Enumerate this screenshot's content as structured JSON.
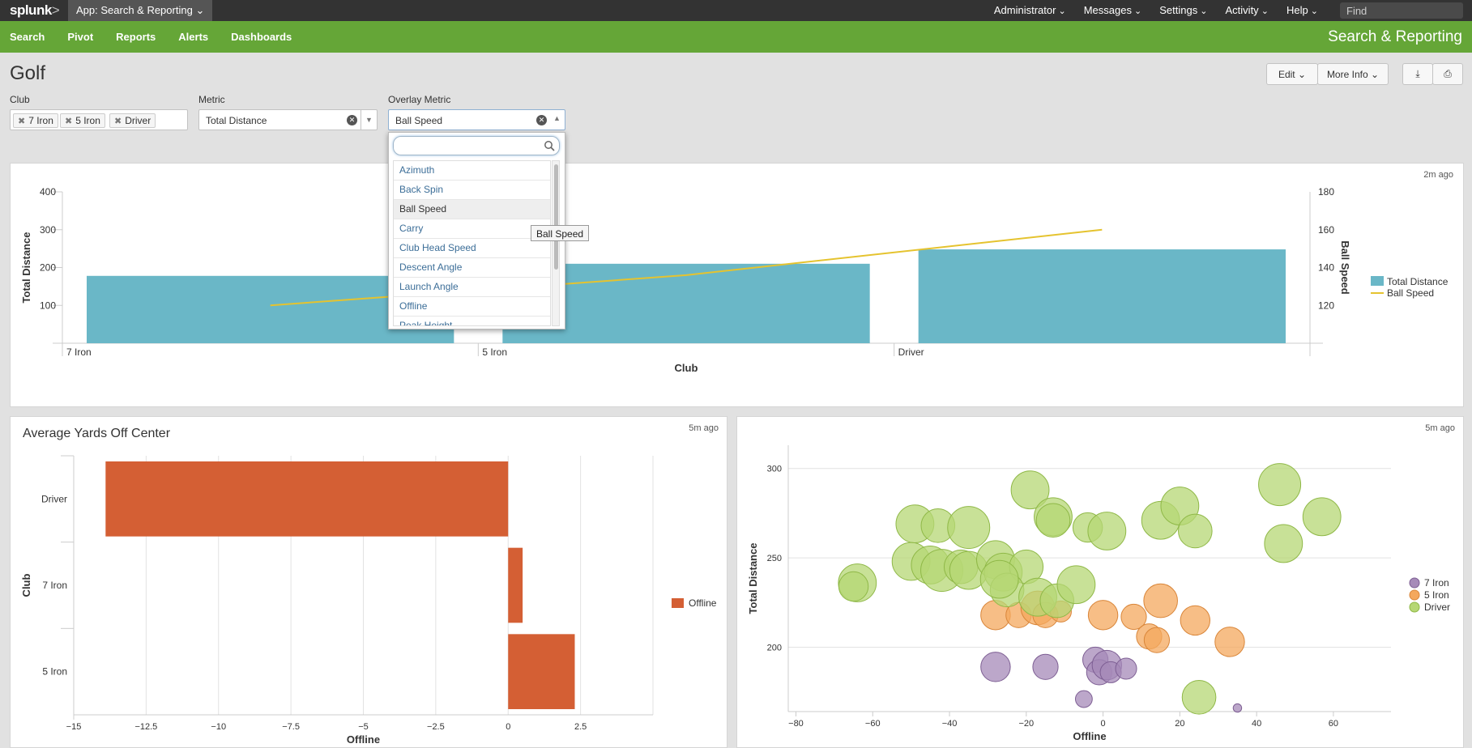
{
  "topbar": {
    "logo": "splunk",
    "logo_suffix": ">",
    "app_menu": "App: Search & Reporting",
    "nav": [
      "Administrator",
      "Messages",
      "Settings",
      "Activity",
      "Help"
    ],
    "find_placeholder": "Find"
  },
  "appnav": {
    "items": [
      "Search",
      "Pivot",
      "Reports",
      "Alerts",
      "Dashboards"
    ],
    "app_title": "Search & Reporting"
  },
  "dashboard": {
    "title": "Golf",
    "edit_label": "Edit",
    "more_info_label": "More Info"
  },
  "inputs": {
    "club": {
      "label": "Club",
      "tokens": [
        "7 Iron",
        "5 Iron",
        "Driver"
      ]
    },
    "metric": {
      "label": "Metric",
      "value": "Total Distance"
    },
    "overlay": {
      "label": "Overlay Metric",
      "value": "Ball Speed"
    }
  },
  "dropdown": {
    "options": [
      "Azimuth",
      "Back Spin",
      "Ball Speed",
      "Carry",
      "Club Head Speed",
      "Descent Angle",
      "Launch Angle",
      "Offline",
      "Peak Height"
    ],
    "selected": "Ball Speed",
    "tooltip": "Ball Speed"
  },
  "colors": {
    "green": "#65a637",
    "bar_blue": "#6ab7c7",
    "line_yellow": "#e5c32f",
    "bar_orange": "#d45f34",
    "seven_iron": "#a68ab8",
    "five_iron": "#f4a85e",
    "driver": "#b6d774"
  },
  "panels": {
    "top": {
      "ago": "2m ago"
    },
    "bottom_left": {
      "title": "Average Yards Off Center",
      "ago": "5m ago"
    },
    "bottom_right": {
      "ago": "5m ago"
    }
  },
  "chart_data": [
    {
      "type": "bar",
      "categories": [
        "7 Iron",
        "5 Iron",
        "Driver"
      ],
      "series": [
        {
          "name": "Total Distance",
          "type": "bar",
          "axis": "left",
          "values": [
            178,
            210,
            248
          ]
        },
        {
          "name": "Ball Speed",
          "type": "line",
          "axis": "right",
          "values": [
            120,
            136,
            160
          ]
        }
      ],
      "xlabel": "Club",
      "ylabel": "Total Distance",
      "y2label": "Ball Speed",
      "ylim": [
        0,
        400
      ],
      "y2lim": [
        100,
        180
      ],
      "yticks": [
        100,
        200,
        300,
        400
      ],
      "y2ticks": [
        120,
        140,
        160,
        180
      ],
      "legend": "right"
    },
    {
      "type": "bar",
      "orientation": "horizontal",
      "title": "Average Yards Off Center",
      "categories": [
        "Driver",
        "7 Iron",
        "5 Iron"
      ],
      "series": [
        {
          "name": "Offline",
          "values": [
            -13.9,
            0.5,
            2.3
          ]
        }
      ],
      "xlabel": "Offline",
      "ylabel": "Club",
      "xlim": [
        -15,
        5
      ],
      "xticks": [
        -15,
        -12.5,
        -10,
        -7.5,
        -5,
        -2.5,
        0,
        2.5
      ],
      "legend": "right"
    },
    {
      "type": "scatter",
      "xlabel": "Offline",
      "ylabel": "Total Distance",
      "xlim": [
        -82,
        75
      ],
      "ylim": [
        164,
        313
      ],
      "xticks": [
        -80,
        -60,
        -40,
        -20,
        0,
        20,
        40,
        60
      ],
      "yticks": [
        200,
        250,
        300
      ],
      "legend": "right",
      "series": [
        {
          "name": "7 Iron",
          "points": [
            [
              -28,
              189,
              7
            ],
            [
              -15,
              189,
              6
            ],
            [
              -2,
              193,
              6
            ],
            [
              -1,
              186,
              6
            ],
            [
              1,
              190,
              7
            ],
            [
              2,
              186,
              5
            ],
            [
              6,
              188,
              5
            ],
            [
              -5,
              171,
              4
            ],
            [
              35,
              166,
              2
            ]
          ]
        },
        {
          "name": "5 Iron",
          "points": [
            [
              -28,
              218,
              7
            ],
            [
              -22,
              218,
              6
            ],
            [
              -17,
              222,
              8
            ],
            [
              -15,
              218,
              6
            ],
            [
              -11,
              220,
              5
            ],
            [
              0,
              218,
              7
            ],
            [
              8,
              217,
              6
            ],
            [
              15,
              226,
              8
            ],
            [
              12,
              206,
              6
            ],
            [
              14,
              204,
              6
            ],
            [
              24,
              215,
              7
            ],
            [
              33,
              203,
              7
            ]
          ]
        },
        {
          "name": "Driver",
          "points": [
            [
              -64,
              236,
              9
            ],
            [
              -65,
              234,
              7
            ],
            [
              -49,
              269,
              9
            ],
            [
              -43,
              268,
              8
            ],
            [
              -35,
              267,
              10
            ],
            [
              -19,
              288,
              9
            ],
            [
              -13,
              273,
              9
            ],
            [
              -13,
              271,
              8
            ],
            [
              -4,
              267,
              7
            ],
            [
              1,
              265,
              9
            ],
            [
              15,
              271,
              9
            ],
            [
              20,
              279,
              9
            ],
            [
              24,
              265,
              8
            ],
            [
              46,
              291,
              10
            ],
            [
              57,
              273,
              9
            ],
            [
              47,
              258,
              9
            ],
            [
              -50,
              248,
              9
            ],
            [
              -45,
              246,
              9
            ],
            [
              -42,
              243,
              10
            ],
            [
              -37,
              245,
              8
            ],
            [
              -35,
              243,
              9
            ],
            [
              -28,
              249,
              9
            ],
            [
              -26,
              242,
              9
            ],
            [
              -20,
              245,
              8
            ],
            [
              -25,
              232,
              8
            ],
            [
              -17,
              228,
              9
            ],
            [
              -12,
              226,
              8
            ],
            [
              -7,
              235,
              9
            ],
            [
              -27,
              238,
              9
            ],
            [
              25,
              172,
              8
            ]
          ]
        }
      ]
    }
  ]
}
